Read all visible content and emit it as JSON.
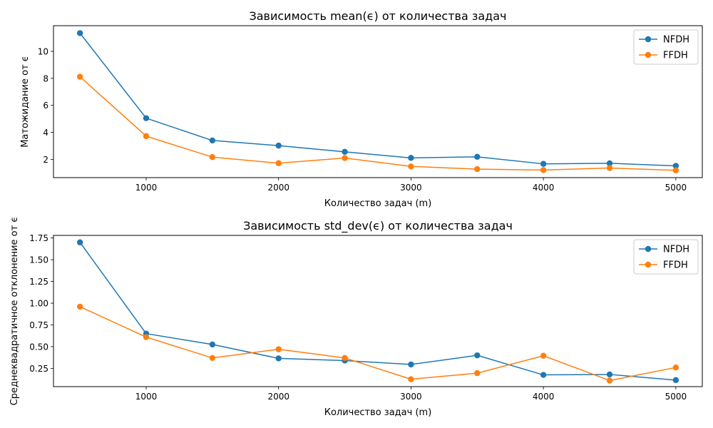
{
  "chart_data": [
    {
      "type": "line",
      "title": "Зависимость mean(ϵ) от количества задач",
      "xlabel": "Количество задач (m)",
      "ylabel": "Матожидание от ϵ",
      "x": [
        500,
        1000,
        1500,
        2000,
        2500,
        3000,
        3500,
        4000,
        4500,
        5000
      ],
      "xlim": [
        300,
        5200
      ],
      "ylim": [
        0.65,
        11.9
      ],
      "xticks": [
        1000,
        2000,
        3000,
        4000,
        5000
      ],
      "xtick_labels": [
        "1000",
        "2000",
        "3000",
        "4000",
        "5000"
      ],
      "yticks": [
        2,
        4,
        6,
        8,
        10
      ],
      "ytick_labels": [
        "2",
        "4",
        "6",
        "8",
        "10"
      ],
      "grid": false,
      "legend_position": "top-right",
      "series": [
        {
          "name": "NFDH",
          "color": "#1f77b4",
          "marker": "circle",
          "values": [
            11.35,
            5.05,
            3.4,
            3.02,
            2.56,
            2.11,
            2.19,
            1.67,
            1.71,
            1.52
          ]
        },
        {
          "name": "FFDH",
          "color": "#ff7f0e",
          "marker": "circle",
          "values": [
            8.12,
            3.72,
            2.17,
            1.72,
            2.1,
            1.48,
            1.28,
            1.21,
            1.36,
            1.19
          ]
        }
      ]
    },
    {
      "type": "line",
      "title": "Зависимость std_dev(ϵ) от количества задач",
      "xlabel": "Количество задач (m)",
      "ylabel": "Среднеквадратичное отклонение от ϵ",
      "x": [
        500,
        1000,
        1500,
        2000,
        2500,
        3000,
        3500,
        4000,
        4500,
        5000
      ],
      "xlim": [
        300,
        5200
      ],
      "ylim": [
        0.04,
        1.78
      ],
      "xticks": [
        1000,
        2000,
        3000,
        4000,
        5000
      ],
      "xtick_labels": [
        "1000",
        "2000",
        "3000",
        "4000",
        "5000"
      ],
      "yticks": [
        0.25,
        0.5,
        0.75,
        1.0,
        1.25,
        1.5,
        1.75
      ],
      "ytick_labels": [
        "0.25",
        "0.50",
        "0.75",
        "1.00",
        "1.25",
        "1.50",
        "1.75"
      ],
      "grid": false,
      "legend_position": "top-right",
      "series": [
        {
          "name": "NFDH",
          "color": "#1f77b4",
          "marker": "circle",
          "values": [
            1.7,
            0.65,
            0.525,
            0.365,
            0.34,
            0.295,
            0.4,
            0.175,
            0.18,
            0.115
          ]
        },
        {
          "name": "FFDH",
          "color": "#ff7f0e",
          "marker": "circle",
          "values": [
            0.96,
            0.61,
            0.37,
            0.47,
            0.37,
            0.125,
            0.195,
            0.395,
            0.11,
            0.26
          ]
        }
      ]
    }
  ]
}
